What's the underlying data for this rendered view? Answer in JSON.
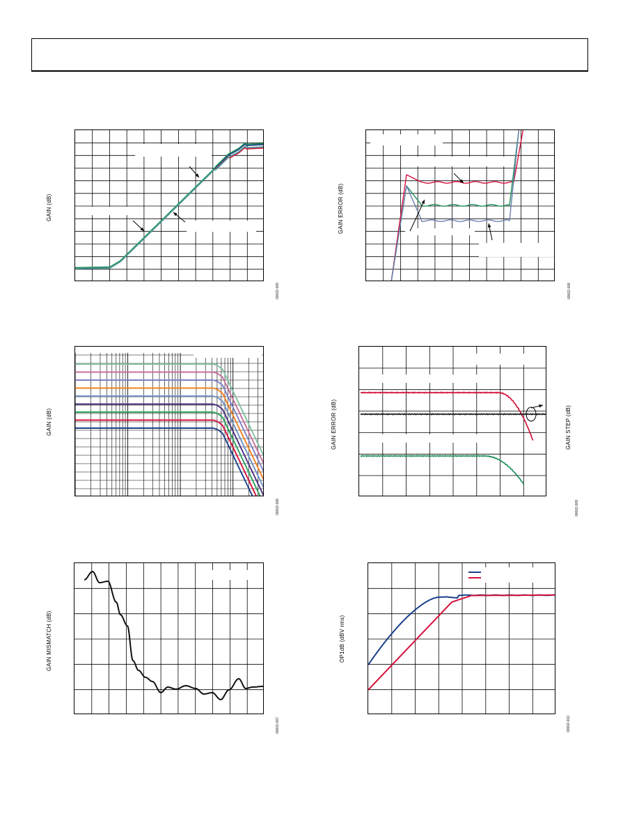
{
  "chart_data": [
    {
      "type": "line",
      "id": "gain-vs-control",
      "title": "",
      "xlabel": "",
      "ylabel": "GAIN (dB)",
      "figure_id": "00002-005",
      "grid": true,
      "series": [
        {
          "color": "#1a3f8a"
        },
        {
          "color": "#d4103a"
        },
        {
          "color": "#1f8f5a"
        },
        {
          "color": "#4f9b9b"
        }
      ]
    },
    {
      "type": "line",
      "id": "gain-error-vs-control",
      "title": "",
      "xlabel": "",
      "ylabel": "GAIN ERROR (dB)",
      "figure_id": "00002-008",
      "grid": true,
      "series": [
        {
          "color": "#d4103a"
        },
        {
          "color": "#1f8f5a"
        },
        {
          "color": "#6a7fb0"
        }
      ]
    },
    {
      "type": "line",
      "id": "gain-vs-frequency",
      "title": "",
      "xlabel": "",
      "ylabel": "GAIN (dB)",
      "figure_id": "00002-006",
      "grid": true,
      "log_x": true,
      "series": [
        {
          "color": "#7fbf9f"
        },
        {
          "color": "#c66f9a"
        },
        {
          "color": "#7f7fc8"
        },
        {
          "color": "#f28020"
        },
        {
          "color": "#6f8fbf"
        },
        {
          "color": "#4a2f7f"
        },
        {
          "color": "#2a9f5a"
        },
        {
          "color": "#d4103a"
        },
        {
          "color": "#1a3f8a"
        }
      ]
    },
    {
      "type": "line",
      "id": "gain-error-and-step",
      "title": "",
      "xlabel": "",
      "ylabel": "GAIN ERROR (dB)",
      "y2label": "GAIN STEP (dB)",
      "figure_id": "00002-009",
      "grid": true,
      "series": [
        {
          "color": "#d4103a"
        },
        {
          "color": "#1a1a1a"
        },
        {
          "color": "#1f8f5a"
        }
      ]
    },
    {
      "type": "line",
      "id": "gain-mismatch",
      "title": "",
      "xlabel": "",
      "ylabel": "GAIN MISMATCH (dB)",
      "figure_id": "00002-007",
      "grid": true,
      "series": [
        {
          "color": "#111111"
        }
      ]
    },
    {
      "type": "line",
      "id": "op1db",
      "title": "",
      "xlabel": "",
      "ylabel": "OP1dB (dBV rms)",
      "figure_id": "00002-010",
      "grid": true,
      "legend": "top-right",
      "series": [
        {
          "color": "#1a3f8a"
        },
        {
          "color": "#d4103a"
        }
      ]
    }
  ]
}
